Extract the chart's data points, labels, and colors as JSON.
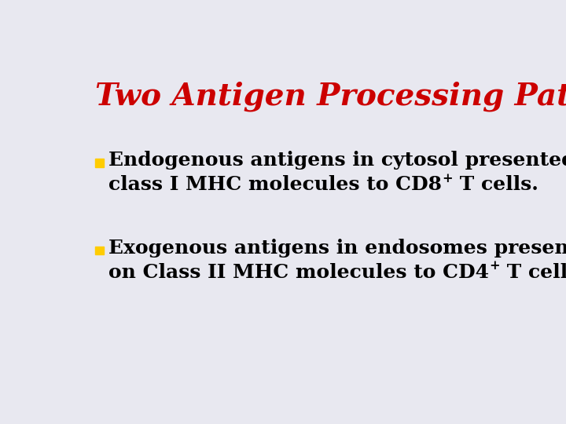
{
  "title": "Two Antigen Processing Pathways",
  "title_color": "#cc0000",
  "title_fontsize": 28,
  "background_color": "#e8e8f0",
  "bullet_color": "#ffcc00",
  "text_color": "#000000",
  "bullet1_line1": "Endogenous antigens in cytosol presented on",
  "bullet1_line2_pre": "class I MHC molecules to CD8",
  "bullet1_line2_sup": "+",
  "bullet1_line2_post": " T cells.",
  "bullet2_line1": "Exogenous antigens in endosomes presented",
  "bullet2_line2_pre": "on Class II MHC molecules to CD4",
  "bullet2_line2_sup": "+",
  "bullet2_line2_post": " T cells.",
  "text_fontsize": 18,
  "font_family": "DejaVu Serif"
}
